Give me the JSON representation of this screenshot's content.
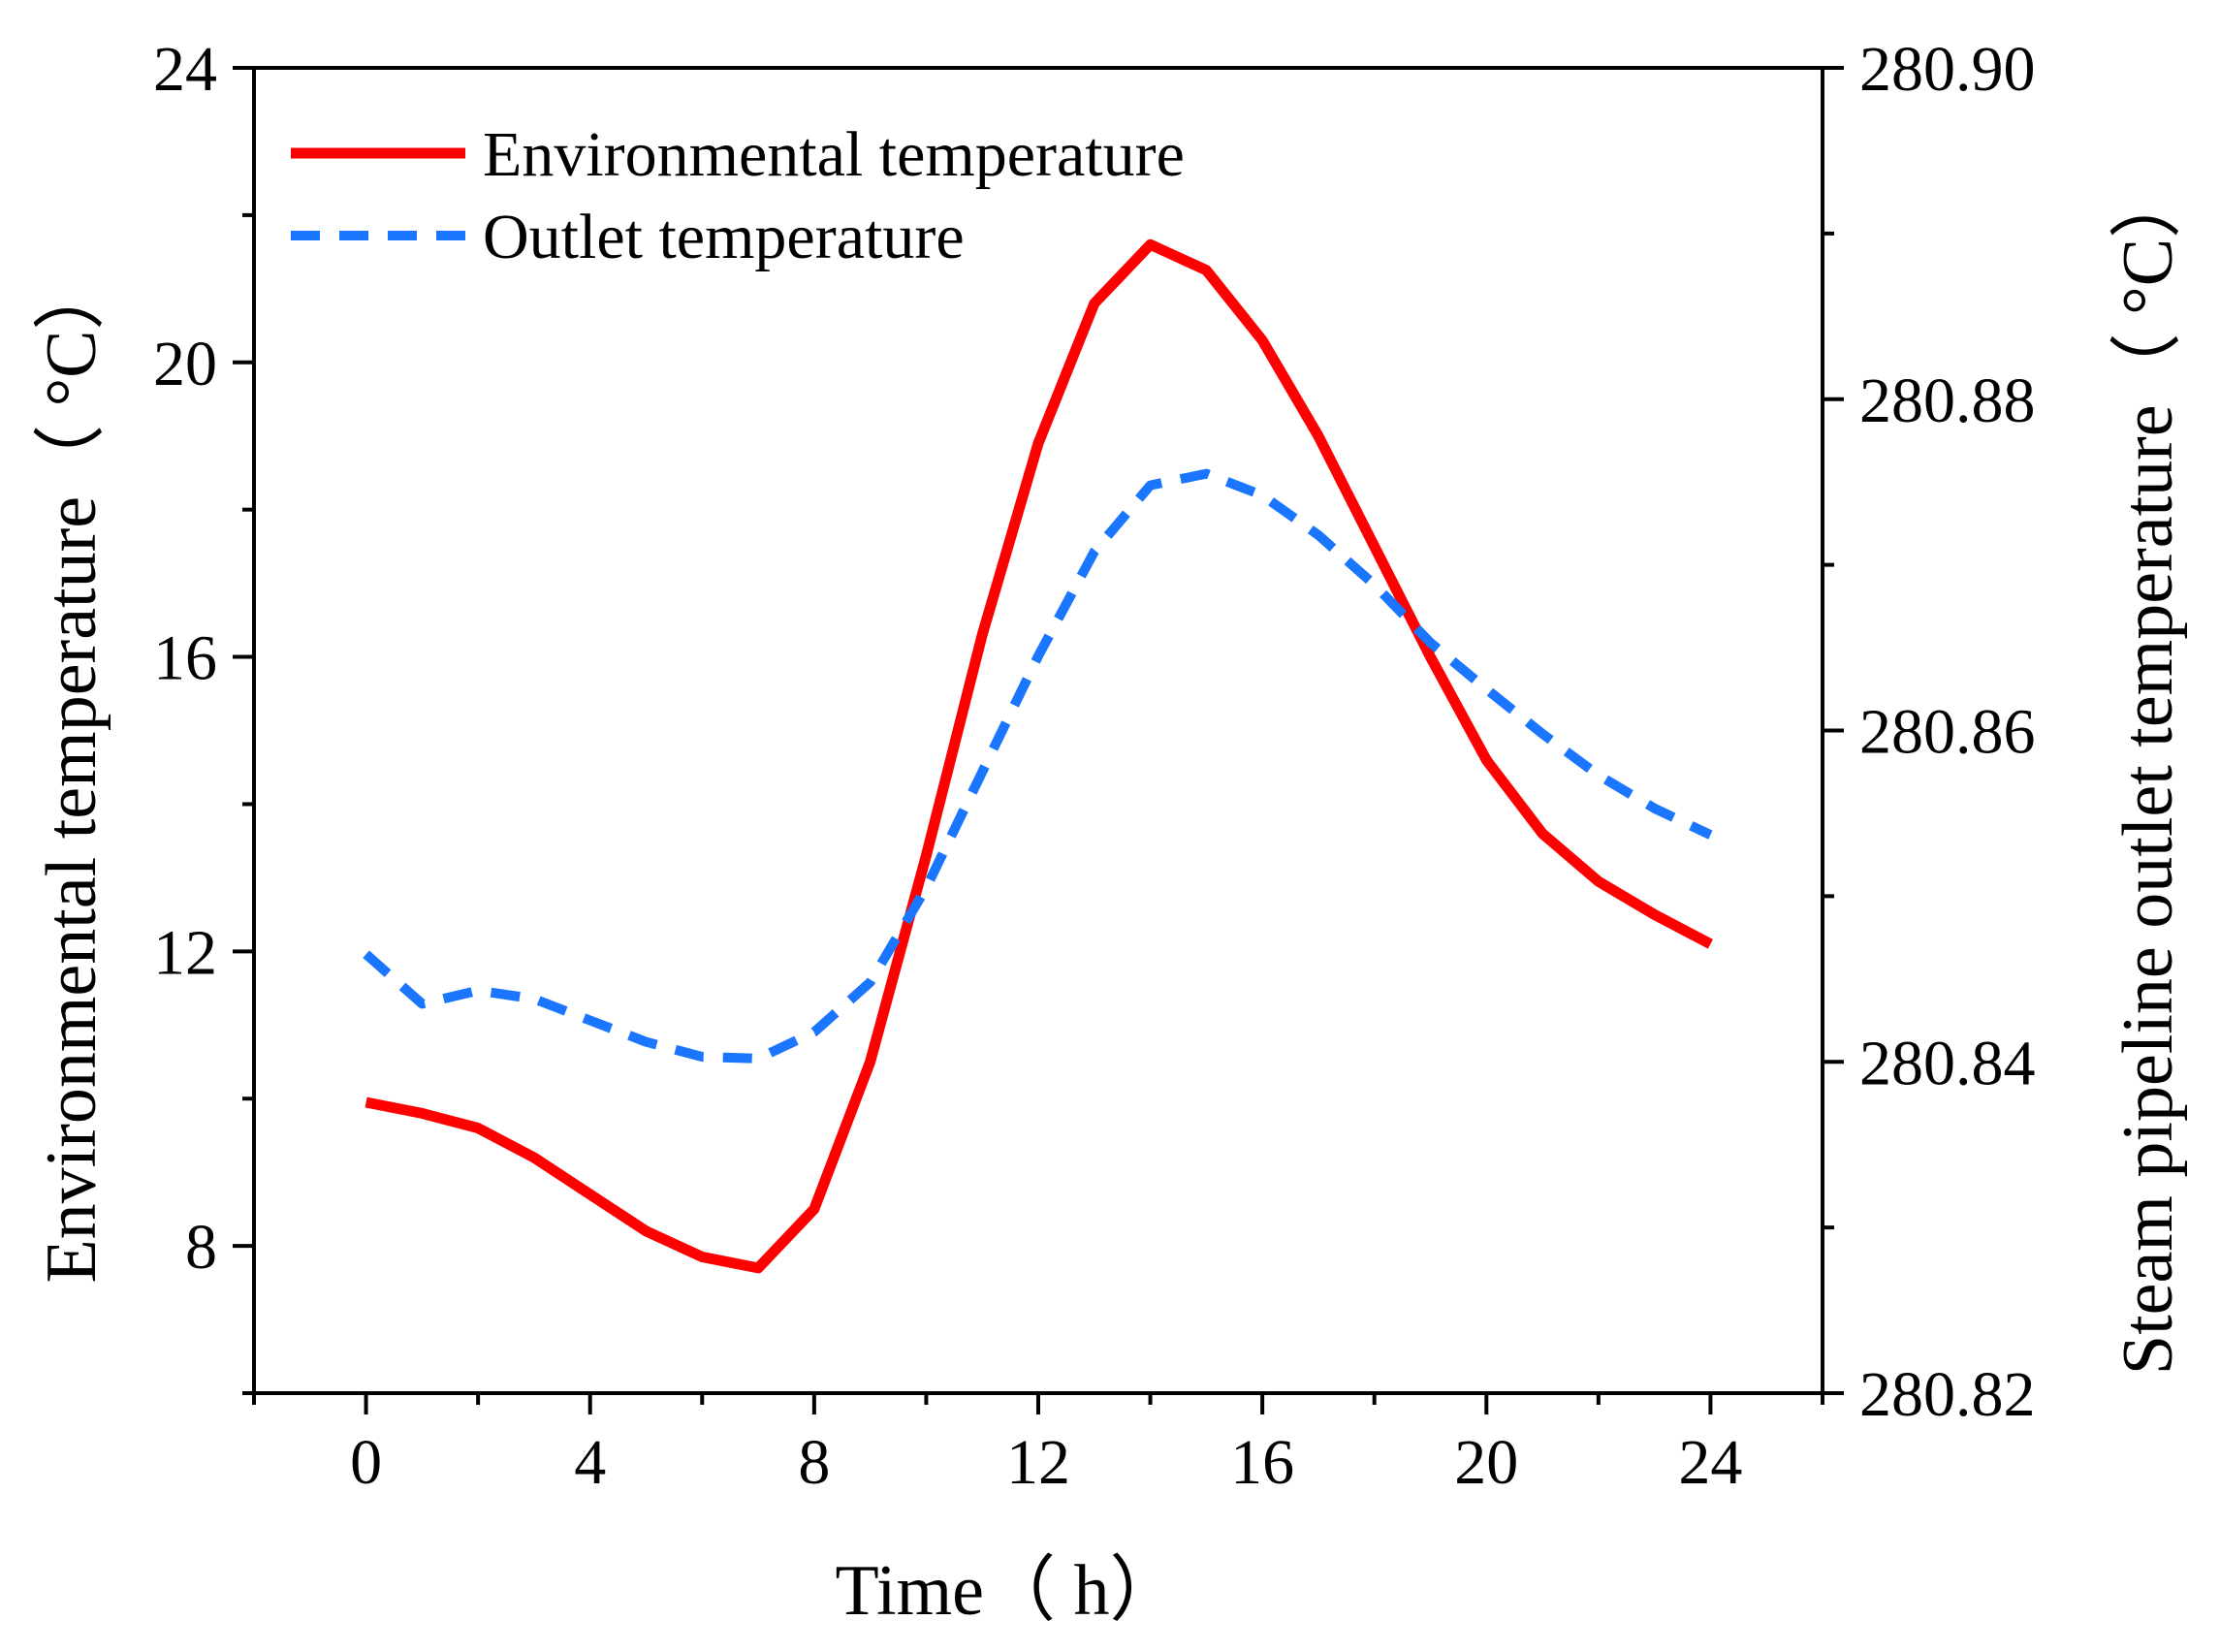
{
  "chart_data": {
    "type": "line",
    "xlabel": "Time（ h）",
    "ylabel_left": "Environmental temperature（ °C）",
    "ylabel_right": "Steam pipeline outlet temperature（ °C）",
    "x_ticks": [
      "0",
      "4",
      "8",
      "12",
      "16",
      "20",
      "24"
    ],
    "y_left_ticks": [
      "8",
      "12",
      "16",
      "20",
      "24"
    ],
    "y_right_ticks": [
      "280.82",
      "280.84",
      "280.86",
      "280.88",
      "280.90"
    ],
    "xlim": [
      -2,
      26
    ],
    "ylim_left": [
      6,
      24
    ],
    "ylim_right": [
      280.82,
      280.9
    ],
    "legend_position": "top-left",
    "grid": false,
    "series": [
      {
        "name": "Environmental temperature",
        "axis": "left",
        "style": "solid",
        "color": "#ff0000",
        "x": [
          0,
          1,
          2,
          3,
          4,
          5,
          6,
          7,
          8,
          9,
          10,
          11,
          12,
          13,
          14,
          15,
          16,
          17,
          18,
          19,
          20,
          21,
          22,
          23,
          24
        ],
        "values": [
          9.95,
          9.8,
          9.6,
          9.2,
          8.7,
          8.2,
          7.85,
          7.7,
          8.5,
          10.5,
          13.3,
          16.3,
          18.9,
          20.8,
          21.6,
          21.25,
          20.3,
          19.0,
          17.5,
          16.0,
          14.6,
          13.6,
          12.95,
          12.5,
          12.1
        ]
      },
      {
        "name": "Outlet temperature",
        "axis": "right",
        "style": "dashed",
        "color": "#1a75ff",
        "x": [
          0,
          1,
          2,
          3,
          4,
          5,
          6,
          7,
          8,
          9,
          10,
          11,
          12,
          13,
          14,
          15,
          16,
          17,
          18,
          19,
          20,
          21,
          22,
          23,
          24
        ],
        "values": [
          280.8465,
          280.8435,
          280.8443,
          280.8438,
          280.8425,
          280.8412,
          280.8403,
          280.8402,
          280.8418,
          280.8448,
          280.8505,
          280.8575,
          280.8645,
          280.8708,
          280.8748,
          280.8755,
          280.8742,
          280.8718,
          280.8688,
          280.8653,
          280.8625,
          280.8598,
          280.8573,
          280.8553,
          280.8537
        ]
      }
    ]
  }
}
